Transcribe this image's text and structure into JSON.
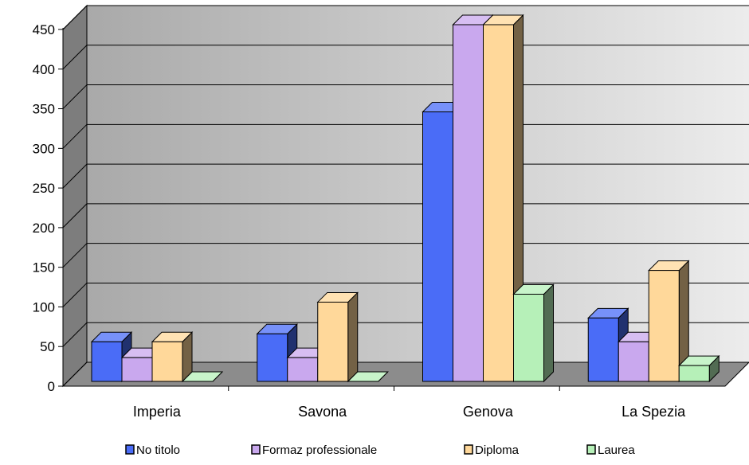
{
  "chart_data": {
    "type": "bar",
    "categories": [
      "Imperia",
      "Savona",
      "Genova",
      "La Spezia"
    ],
    "series": [
      {
        "name": "No titolo",
        "values": [
          50,
          60,
          340,
          80
        ],
        "color": "#4a6cf7"
      },
      {
        "name": "Formaz professionale",
        "values": [
          30,
          30,
          450,
          50
        ],
        "color": "#c9a8ee"
      },
      {
        "name": "Diploma",
        "values": [
          50,
          100,
          450,
          140
        ],
        "color": "#ffd89a"
      },
      {
        "name": "Laurea",
        "values": [
          0,
          0,
          110,
          20
        ],
        "color": "#b6f0b8"
      }
    ],
    "ylim": [
      0,
      450
    ],
    "yticks": [
      "0",
      "50",
      "100",
      "150",
      "200",
      "250",
      "300",
      "350",
      "400",
      "450"
    ],
    "grid": true,
    "legend": "bottom"
  }
}
